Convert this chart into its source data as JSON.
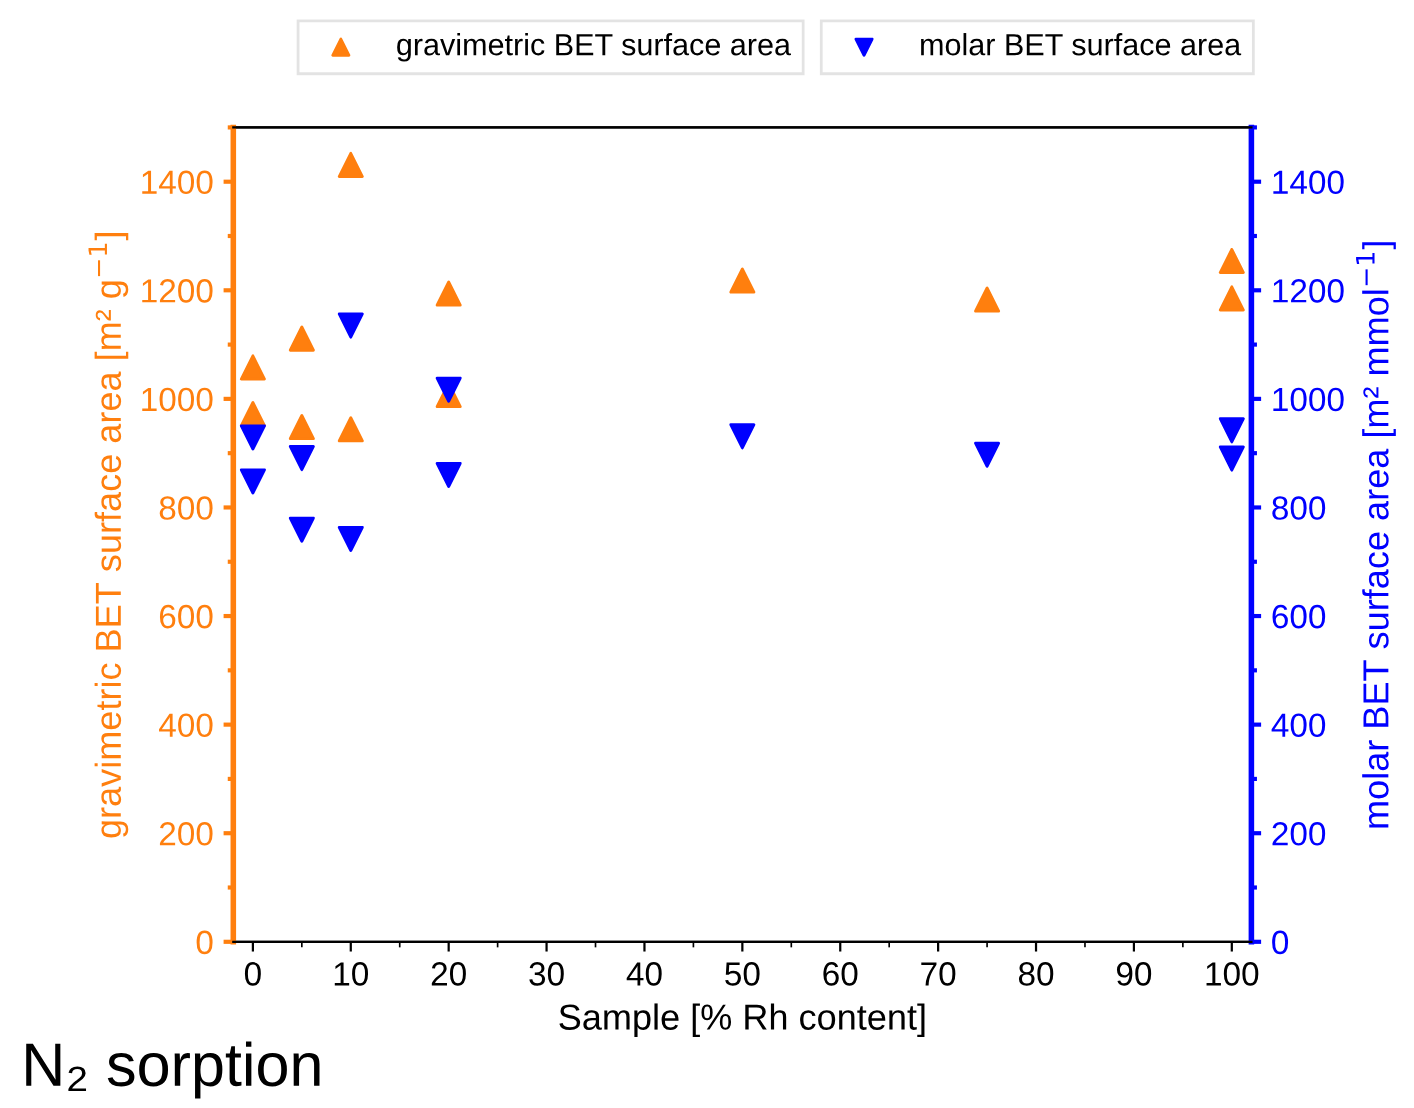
{
  "chart_data": {
    "type": "scatter",
    "xlabel": "Sample [% Rh content]",
    "ylabel": "gravimetric BET surface area [m² g$^{−1}$]",
    "y2label": "molar BET surface area [m² mmol$^{−1}$]",
    "xlim": [
      -2,
      102
    ],
    "xticks": [
      0,
      10,
      20,
      30,
      40,
      50,
      60,
      70,
      80,
      90,
      100
    ],
    "ylim": [
      0,
      1500
    ],
    "yticks": [
      0,
      200,
      400,
      600,
      800,
      1000,
      1200,
      1400
    ],
    "y2lim": [
      0,
      1500
    ],
    "y2ticks": [
      0,
      200,
      400,
      600,
      800,
      1000,
      1200,
      1400
    ],
    "series": [
      {
        "name": "gravimetric BET surface area",
        "color": "#ff7f0e",
        "marker": "triangle",
        "x": [
          0,
          0,
          5,
          5,
          10,
          10,
          20,
          20,
          50,
          75,
          100,
          100
        ],
        "values": [
          1058,
          972,
          1111,
          948,
          1431,
          944,
          1194,
          1007,
          1218,
          1183,
          1254,
          1185
        ]
      },
      {
        "name": "molar BET surface area",
        "color": "#0000ff",
        "marker": "triangle_down",
        "axis": "y2",
        "x": [
          0,
          0,
          5,
          5,
          10,
          10,
          20,
          20,
          50,
          75,
          100,
          100
        ],
        "values": [
          929,
          848,
          891,
          759,
          1135,
          742,
          1017,
          860,
          931,
          897,
          942,
          890
        ]
      }
    ],
    "legend": "top",
    "grid": false,
    "annotations": [
      "N₂ sorption"
    ]
  }
}
